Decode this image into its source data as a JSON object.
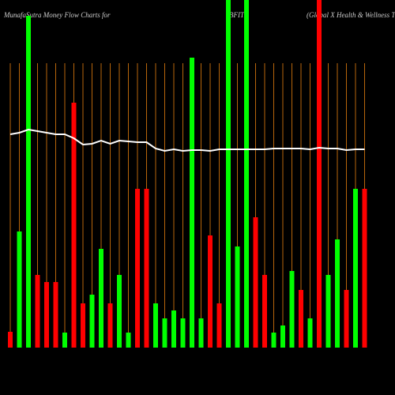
{
  "chart_data": {
    "type": "bar",
    "title": "MunafaSutra  Money Flow  Charts for",
    "ticker": "BFIT",
    "subtitle": "(Global X  Health & Wellness Th",
    "values": [
      20,
      147,
      420,
      92,
      83,
      83,
      19,
      310,
      56,
      67,
      125,
      56,
      92,
      19,
      201,
      201,
      56,
      37,
      47,
      37,
      367,
      37,
      142,
      56,
      440,
      128,
      440,
      165,
      92,
      19,
      28,
      97,
      73,
      37,
      440,
      92,
      137,
      73,
      201,
      201
    ],
    "colors": [
      "#ff0000",
      "#00ff00",
      "#00ff00",
      "#ff0000",
      "#ff0000",
      "#ff0000",
      "#00ff00",
      "#ff0000",
      "#ff0000",
      "#00ff00",
      "#00ff00",
      "#ff0000",
      "#00ff00",
      "#00ff00",
      "#ff0000",
      "#ff0000",
      "#00ff00",
      "#00ff00",
      "#00ff00",
      "#00ff00",
      "#00ff00",
      "#00ff00",
      "#ff0000",
      "#ff0000",
      "#00ff00",
      "#00ff00",
      "#00ff00",
      "#ff0000",
      "#ff0000",
      "#00ff00",
      "#00ff00",
      "#00ff00",
      "#ff0000",
      "#00ff00",
      "#ff0000",
      "#00ff00",
      "#00ff00",
      "#ff0000",
      "#00ff00",
      "#ff0000"
    ],
    "line": {
      "color": "#ffffff",
      "values": [
        270,
        272,
        276,
        274,
        272,
        270,
        270,
        265,
        257,
        258,
        262,
        258,
        262,
        261,
        260,
        260,
        252,
        249,
        251,
        249,
        250,
        250,
        249,
        251,
        251,
        251,
        251,
        251,
        251,
        252,
        252,
        252,
        252,
        251,
        253,
        252,
        252,
        250,
        251,
        251
      ]
    },
    "ylim": [
      0,
      440
    ]
  }
}
